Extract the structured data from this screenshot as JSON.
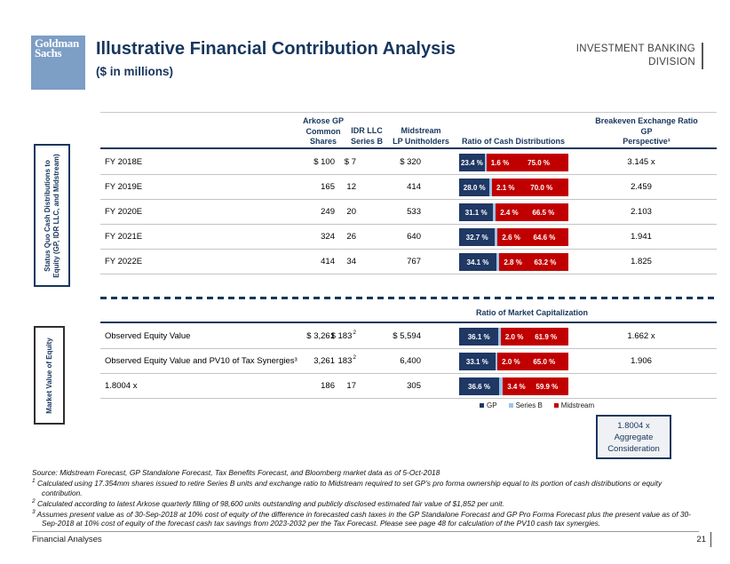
{
  "slide": {
    "logo_text": "Goldman\nSachs",
    "title": "Illustrative Financial Contribution Analysis",
    "subtitle": "($ in millions)",
    "division": "INVESTMENT BANKING\nDIVISION"
  },
  "side_labels": {
    "cash": "Status Quo Cash Distributions to\nEquity (GP, IDR LLC, and Midstream)",
    "market": "Market Value of Equity"
  },
  "columns": {
    "arkose": "Arkose GP\nCommon\nShares",
    "idr": "IDR LLC\nSeries B",
    "midstream": "Midstream\nLP Unitholders",
    "ratio_cash": "Ratio of Cash Distributions",
    "breakeven": "Breakeven Exchange Ratio\nGP\nPerspective¹"
  },
  "cash_rows": [
    {
      "label": "FY 2018E",
      "v1": "$ 100",
      "v2": "$ 7",
      "v3": "$ 320",
      "bar": {
        "gp": "23.4 %",
        "sb": "1.6 %",
        "mid": "75.0 %"
      },
      "bk": "3.145 x"
    },
    {
      "label": "FY 2019E",
      "v1": "165",
      "v2": "12",
      "v3": "414",
      "bar": {
        "gp": "28.0 %",
        "sb": "2.1 %",
        "mid": "70.0 %"
      },
      "bk": "2.459"
    },
    {
      "label": "FY 2020E",
      "v1": "249",
      "v2": "20",
      "v3": "533",
      "bar": {
        "gp": "31.1 %",
        "sb": "2.4 %",
        "mid": "66.5 %"
      },
      "bk": "2.103"
    },
    {
      "label": "FY 2021E",
      "v1": "324",
      "v2": "26",
      "v3": "640",
      "bar": {
        "gp": "32.7 %",
        "sb": "2.6 %",
        "mid": "64.6 %"
      },
      "bk": "1.941"
    },
    {
      "label": "FY 2022E",
      "v1": "414",
      "v2": "34",
      "v3": "767",
      "bar": {
        "gp": "34.1 %",
        "sb": "2.8 %",
        "mid": "63.2 %"
      },
      "bk": "1.825"
    }
  ],
  "market_section": {
    "header": "Ratio of Market Capitalization",
    "rows": [
      {
        "label": "Observed Equity Value",
        "v1": "$ 3,261",
        "v2": "$ 183",
        "v2_sup": "2",
        "v3": "$ 5,594",
        "bar": {
          "gp": "36.1 %",
          "sb": "2.0 %",
          "mid": "61.9 %"
        },
        "bk": "1.662 x"
      },
      {
        "label": "Observed Equity Value and PV10 of Tax Synergies³",
        "v1": "3,261",
        "v2": "183",
        "v2_sup": "2",
        "v3": "6,400",
        "bar": {
          "gp": "33.1 %",
          "sb": "2.0 %",
          "mid": "65.0 %"
        },
        "bk": "1.906"
      },
      {
        "label": "1.8004 x",
        "v1": "186",
        "v2": "17",
        "v3": "305",
        "bar": {
          "gp": "36.6 %",
          "sb": "3.4 %",
          "mid": "59.9 %"
        },
        "bk": ""
      }
    ]
  },
  "legend": {
    "gp": "GP",
    "sb": "Series B",
    "mid": "Midstream"
  },
  "colors": {
    "gp": "#1F3864",
    "series_b": "#9DC3E6",
    "midstream": "#C00000",
    "accent_navy": "#17365D",
    "logo_blue": "#7D9EC5"
  },
  "aggregate_box": "1.8004 x\nAggregate\nConsideration",
  "footnotes": {
    "source": "Source: Midstream Forecast, GP Standalone Forecast, Tax Benefits Forecast, and Bloomberg market data as of 5-Oct-2018",
    "items": [
      {
        "marker": "1",
        "text": "Calculated using 17.354mm shares issued to retire Series B units and exchange ratio to Midstream required to set GP’s pro forma ownership equal to its portion of cash distributions or equity contribution."
      },
      {
        "marker": "2",
        "text": "Calculated according to latest Arkose quarterly filling of 98,600 units outstanding and publicly disclosed estimated fair value of $1,852 per unit."
      },
      {
        "marker": "3",
        "text": "Assumes present value as of 30-Sep-2018 at 10% cost of equity of the difference in forecasted cash taxes in the GP Standalone Forecast and GP Pro Forma Forecast plus the present value as of 30-Sep-2018 at 10% cost of equity of the forecast cash tax savings from 2023-2032 per the Tax Forecast. Please see page 48 for calculation of the PV10 cash tax synergies."
      }
    ]
  },
  "footer": {
    "left": "Financial Analyses",
    "page": "21"
  },
  "chart_data": [
    {
      "type": "bar",
      "stacked": true,
      "orientation": "horizontal",
      "title": "Ratio of Cash Distributions",
      "categories": [
        "FY 2018E",
        "FY 2019E",
        "FY 2020E",
        "FY 2021E",
        "FY 2022E"
      ],
      "series": [
        {
          "name": "GP",
          "values": [
            23.4,
            28.0,
            31.1,
            32.7,
            34.1
          ]
        },
        {
          "name": "Series B",
          "values": [
            1.6,
            2.1,
            2.4,
            2.6,
            2.8
          ]
        },
        {
          "name": "Midstream",
          "values": [
            75.0,
            70.0,
            66.5,
            64.6,
            63.2
          ]
        }
      ],
      "xlim": [
        0,
        100
      ],
      "legend_position": "bottom"
    },
    {
      "type": "bar",
      "stacked": true,
      "orientation": "horizontal",
      "title": "Ratio of Market Capitalization",
      "categories": [
        "Observed Equity Value",
        "Observed Equity Value and PV10 of Tax Synergies",
        "1.8004 x"
      ],
      "series": [
        {
          "name": "GP",
          "values": [
            36.1,
            33.1,
            36.6
          ]
        },
        {
          "name": "Series B",
          "values": [
            2.0,
            2.0,
            3.4
          ]
        },
        {
          "name": "Midstream",
          "values": [
            61.9,
            65.0,
            59.9
          ]
        }
      ],
      "xlim": [
        0,
        100
      ],
      "legend_position": "bottom"
    }
  ]
}
